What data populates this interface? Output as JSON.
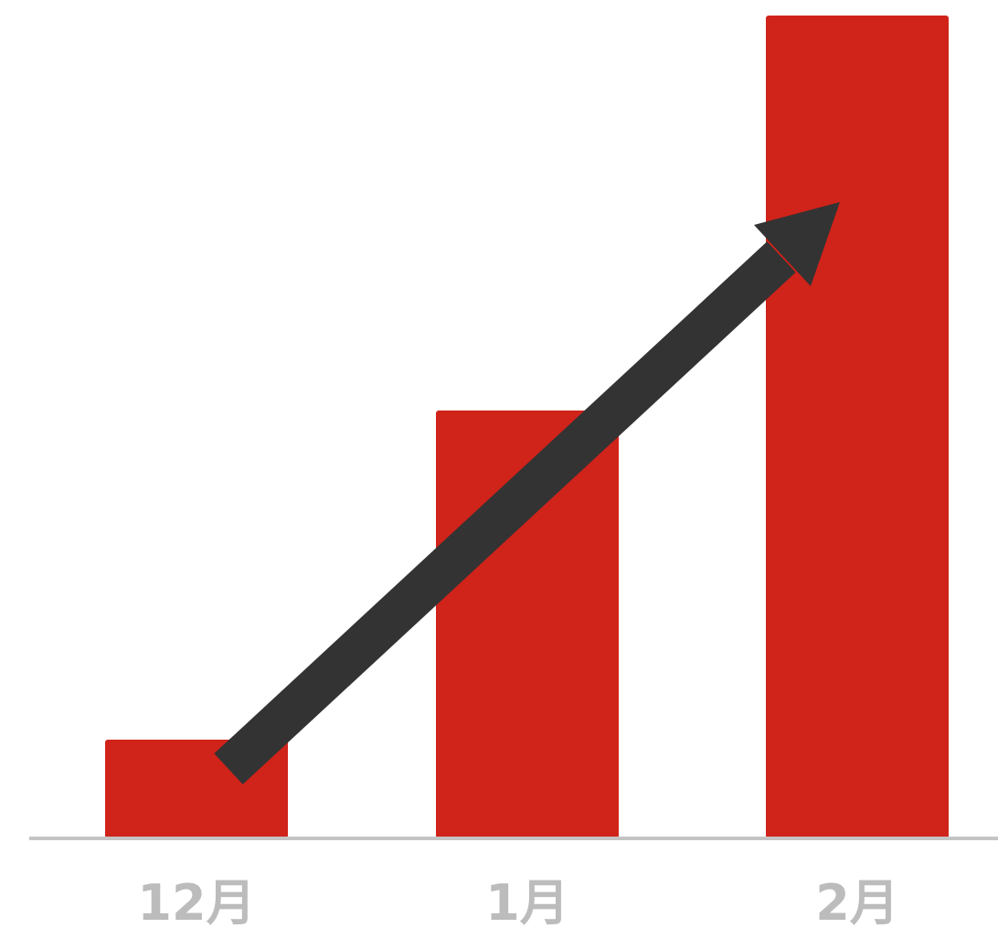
{
  "chart_data": {
    "type": "bar",
    "categories": [
      "12月",
      "1月",
      "2月"
    ],
    "values": [
      12,
      52,
      100
    ],
    "ylim": [
      0,
      100
    ],
    "grid": false,
    "legend": "none",
    "annotations": [
      {
        "type": "trend-arrow",
        "from_category": "12月",
        "to_category": "2月",
        "direction": "up"
      }
    ]
  },
  "colors": {
    "bar": "#d0231a",
    "arrow": "#333333",
    "baseline": "#c4c4c4",
    "tick_label": "#bcbcbc",
    "background": "#ffffff"
  }
}
